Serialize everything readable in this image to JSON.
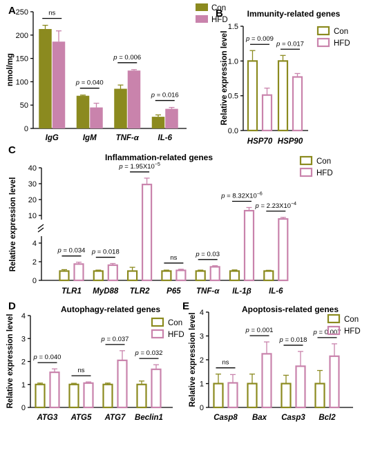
{
  "colors": {
    "con": "#8b8a1f",
    "hfd": "#c983ac",
    "axis": "#000000"
  },
  "chart_data": [
    {
      "id": "A",
      "type": "bar",
      "panel_label": "A",
      "title": "",
      "xlabel": "",
      "ylabel": "nmol/mg",
      "fill": "solid",
      "ylim": [
        0,
        250
      ],
      "yticks": [
        0,
        50,
        100,
        150,
        200,
        250
      ],
      "categories": [
        "IgG",
        "IgM",
        "TNF-α",
        "IL-6"
      ],
      "series": [
        {
          "name": "Con",
          "values": [
            213,
            70,
            85,
            25
          ],
          "errors": [
            8,
            1.5,
            8,
            4
          ]
        },
        {
          "name": "HFD",
          "values": [
            186,
            45,
            124,
            42
          ],
          "errors": [
            23,
            9,
            2,
            3
          ]
        }
      ],
      "annotations": [
        {
          "category": 0,
          "text": "ns"
        },
        {
          "category": 1,
          "text": "p = 0.040"
        },
        {
          "category": 2,
          "text": "p = 0.006"
        },
        {
          "category": 3,
          "text": "p = 0.016"
        }
      ],
      "legend": {
        "position": "top-right",
        "entries": [
          "Con",
          "HFD"
        ]
      }
    },
    {
      "id": "B",
      "type": "bar",
      "panel_label": "B",
      "title": "Immunity-related genes",
      "xlabel": "",
      "ylabel": "Relative expression level",
      "fill": "hollow",
      "ylim": [
        0,
        1.5
      ],
      "yticks": [
        0.0,
        0.5,
        1.0,
        1.5
      ],
      "tick_decimals": 1,
      "categories": [
        "HSP70",
        "HSP90"
      ],
      "series": [
        {
          "name": "Con",
          "values": [
            1.0,
            1.0
          ],
          "errors": [
            0.15,
            0.08
          ]
        },
        {
          "name": "HFD",
          "values": [
            0.51,
            0.77
          ],
          "errors": [
            0.1,
            0.05
          ]
        }
      ],
      "annotations": [
        {
          "category": 0,
          "text": "p = 0.009"
        },
        {
          "category": 1,
          "text": "p = 0.017"
        }
      ],
      "legend": {
        "position": "top-right",
        "entries": [
          "Con",
          "HFD"
        ]
      }
    },
    {
      "id": "C",
      "type": "bar",
      "panel_label": "C",
      "title": "Inflammation-related genes",
      "xlabel": "",
      "ylabel": "Relative expression level",
      "fill": "hollow",
      "axis_break": true,
      "ylim_lower": [
        0,
        4
      ],
      "yticks_lower": [
        0,
        2,
        4
      ],
      "ylim_upper": [
        10,
        40
      ],
      "yticks_upper": [
        10,
        20,
        30,
        40
      ],
      "categories": [
        "TLR1",
        "MyD88",
        "TLR2",
        "P65",
        "TNF-α",
        "IL-1β",
        "IL-6"
      ],
      "series": [
        {
          "name": "Con",
          "values": [
            1.0,
            1.0,
            1.0,
            1.0,
            1.0,
            1.0,
            1.0
          ],
          "errors": [
            0.15,
            0.1,
            0.4,
            0.1,
            0.1,
            0.12,
            0.08
          ]
        },
        {
          "name": "HFD",
          "values": [
            1.75,
            1.63,
            29.5,
            1.07,
            1.45,
            13.0,
            7.8
          ],
          "errors": [
            0.2,
            0.18,
            4.0,
            0.12,
            0.12,
            2.0,
            1.0
          ]
        }
      ],
      "annotations": [
        {
          "category": 0,
          "text": "p = 0.034"
        },
        {
          "category": 1,
          "text": "p = 0.018"
        },
        {
          "category": 2,
          "text": "p = 1.95X10",
          "sup": "−5"
        },
        {
          "category": 3,
          "text": "ns"
        },
        {
          "category": 4,
          "text": "p = 0.03"
        },
        {
          "category": 5,
          "text": "p = 8.32X10",
          "sup": "−6"
        },
        {
          "category": 6,
          "text": "p = 2.23X10",
          "sup": "−4"
        }
      ],
      "legend": {
        "position": "top-right",
        "entries": [
          "Con",
          "HFD"
        ]
      }
    },
    {
      "id": "D",
      "type": "bar",
      "panel_label": "D",
      "title": "Autophagy-related genes",
      "xlabel": "",
      "ylabel": "Relative expression level",
      "fill": "hollow",
      "ylim": [
        0,
        4
      ],
      "yticks": [
        0,
        1,
        2,
        3,
        4
      ],
      "categories": [
        "ATG3",
        "ATG5",
        "ATG7",
        "Beclin1"
      ],
      "series": [
        {
          "name": "Con",
          "values": [
            1.0,
            1.0,
            1.0,
            1.0
          ],
          "errors": [
            0.06,
            0.05,
            0.06,
            0.15
          ]
        },
        {
          "name": "HFD",
          "values": [
            1.53,
            1.06,
            2.05,
            1.66
          ],
          "errors": [
            0.15,
            0.05,
            0.42,
            0.2
          ]
        }
      ],
      "annotations": [
        {
          "category": 0,
          "text": "p = 0.040"
        },
        {
          "category": 1,
          "text": "ns"
        },
        {
          "category": 2,
          "text": "p = 0.037"
        },
        {
          "category": 3,
          "text": "p = 0.032"
        }
      ],
      "legend": {
        "position": "top-right",
        "entries": [
          "Con",
          "HFD"
        ]
      }
    },
    {
      "id": "E",
      "type": "bar",
      "panel_label": "E",
      "title": "Apoptosis-related genes",
      "xlabel": "",
      "ylabel": "Relative expression level",
      "fill": "hollow",
      "ylim": [
        0,
        4
      ],
      "yticks": [
        0,
        1,
        2,
        3,
        4
      ],
      "categories": [
        "Casp8",
        "Bax",
        "Casp3",
        "Bcl2"
      ],
      "series": [
        {
          "name": "Con",
          "values": [
            1.0,
            1.0,
            1.0,
            1.0
          ],
          "errors": [
            0.4,
            0.4,
            0.35,
            0.55
          ]
        },
        {
          "name": "HFD",
          "values": [
            1.03,
            2.25,
            1.73,
            2.15
          ],
          "errors": [
            0.35,
            0.5,
            0.62,
            0.52
          ]
        }
      ],
      "annotations": [
        {
          "category": 0,
          "text": "ns"
        },
        {
          "category": 1,
          "text": "p = 0.001"
        },
        {
          "category": 2,
          "text": "p = 0.018"
        },
        {
          "category": 3,
          "text": "p = 0.007"
        }
      ],
      "legend": {
        "position": "top-right",
        "entries": [
          "Con",
          "HFD"
        ]
      }
    }
  ]
}
